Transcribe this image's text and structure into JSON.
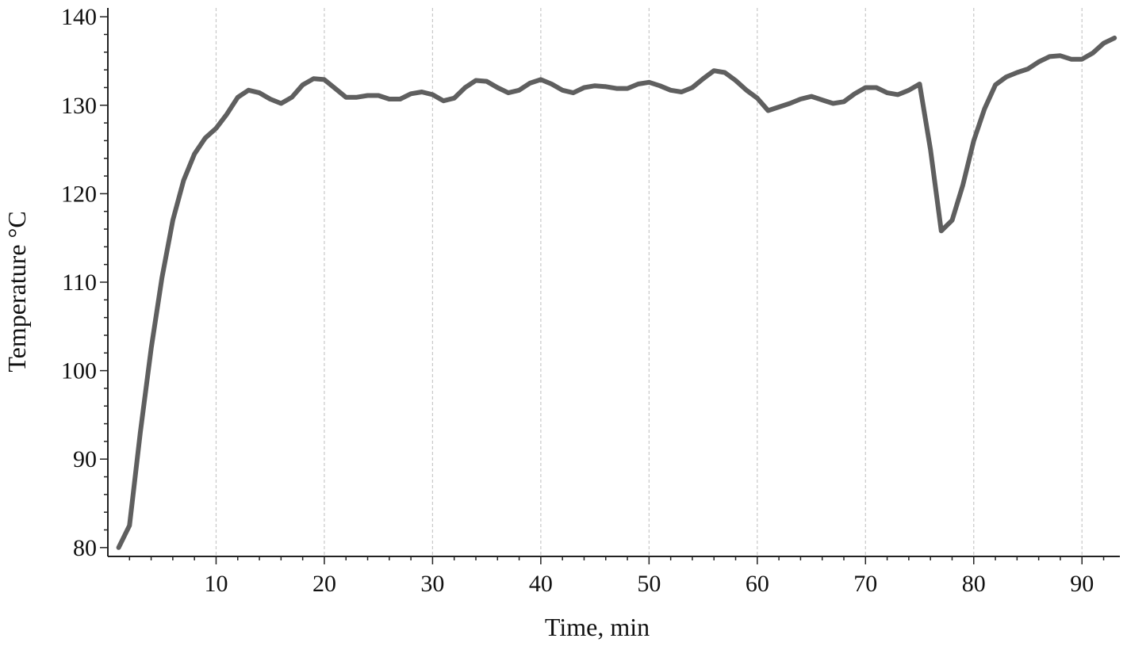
{
  "chart_data": {
    "type": "line",
    "title": "",
    "xlabel": "Time, min",
    "ylabel": "Temperature °C",
    "xlim": [
      0,
      93.5
    ],
    "ylim": [
      79,
      141
    ],
    "x_ticks": [
      10,
      20,
      30,
      40,
      50,
      60,
      70,
      80,
      90
    ],
    "y_ticks": [
      80,
      90,
      100,
      110,
      120,
      130,
      140
    ],
    "grid": "vertical dashed",
    "series_color": "#5f5f5f",
    "series": [
      {
        "x": [
          1,
          2,
          3,
          4,
          5,
          6,
          7,
          8,
          9,
          10,
          11,
          12,
          13,
          14,
          15,
          16,
          17,
          18,
          19,
          20,
          21,
          22,
          23,
          24,
          25,
          26,
          27,
          28,
          29,
          30,
          31,
          32,
          33,
          34,
          35,
          36,
          37,
          38,
          39,
          40,
          41,
          42,
          43,
          44,
          45,
          46,
          47,
          48,
          49,
          50,
          51,
          52,
          53,
          54,
          55,
          56,
          57,
          58,
          59,
          60,
          61,
          62,
          63,
          64,
          65,
          66,
          67,
          68,
          69,
          70,
          71,
          72,
          73,
          74,
          75,
          76,
          77,
          78,
          79,
          80,
          81,
          82,
          83,
          84,
          85,
          86,
          87,
          88,
          89,
          90,
          91,
          92,
          93
        ],
        "y": [
          80,
          82.5,
          93,
          102.5,
          110.5,
          117,
          121.5,
          124.5,
          126.3,
          127.4,
          129,
          130.9,
          131.7,
          131.4,
          130.7,
          130.2,
          130.9,
          132.3,
          133,
          132.9,
          131.9,
          130.9,
          130.9,
          131.1,
          131.1,
          130.7,
          130.7,
          131.3,
          131.5,
          131.2,
          130.5,
          130.8,
          132,
          132.8,
          132.7,
          132,
          131.4,
          131.7,
          132.5,
          132.9,
          132.4,
          131.7,
          131.4,
          132,
          132.2,
          132.1,
          131.9,
          131.9,
          132.4,
          132.6,
          132.2,
          131.7,
          131.5,
          132,
          133,
          133.9,
          133.7,
          132.8,
          131.7,
          130.8,
          129.4,
          129.8,
          130.2,
          130.7,
          131,
          130.6,
          130.2,
          130.4,
          131.3,
          132,
          132,
          131.4,
          131.2,
          131.7,
          132.4,
          125,
          115.8,
          117,
          121,
          126,
          129.6,
          132.3,
          133.2,
          133.7,
          134.1,
          134.9,
          135.5,
          135.6,
          135.2,
          135.2,
          135.9,
          137,
          137.6
        ]
      }
    ]
  }
}
